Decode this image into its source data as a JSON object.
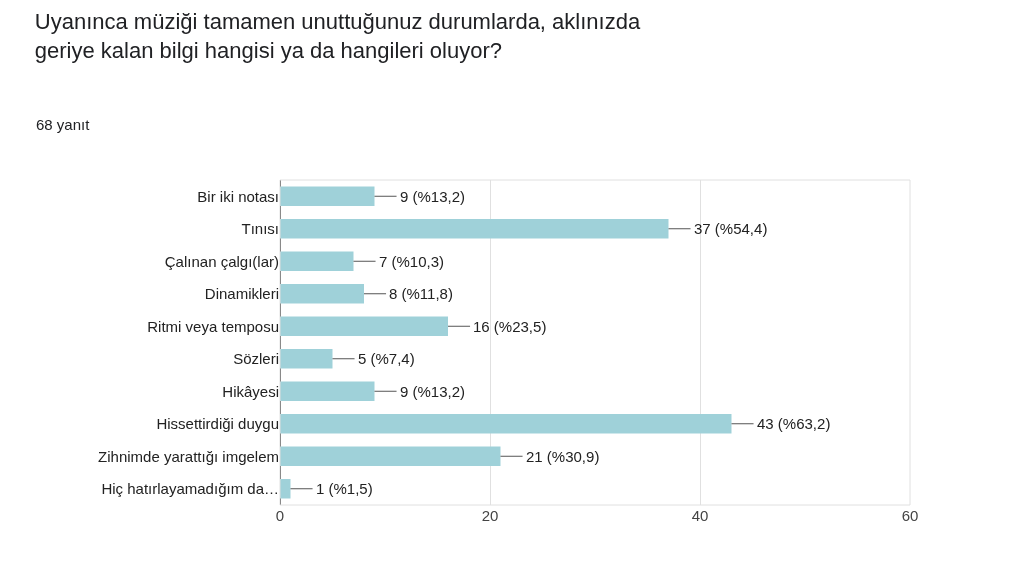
{
  "chart_data": {
    "type": "bar",
    "orientation": "horizontal",
    "title": "Uyanınca müziği tamamen unuttuğunuz durumlarda, aklınızda\ngeriye kalan bilgi hangisi ya da hangileri oluyor?",
    "subtitle": "68 yanıt",
    "categories": [
      "Bir iki notası",
      "Tınısı",
      "Çalınan çalgı(lar)",
      "Dinamikleri",
      "Ritmi veya temposu",
      "Sözleri",
      "Hikâyesi",
      "Hissettirdiği duygu",
      "Zihnimde yarattığı imgelem",
      "Hiç hatırlayamadığım da…"
    ],
    "values": [
      9,
      37,
      7,
      8,
      16,
      5,
      9,
      43,
      21,
      1
    ],
    "value_labels": [
      "9 (%13,2)",
      "37 (%54,4)",
      "7 (%10,3)",
      "8 (%11,8)",
      "16 (%23,5)",
      "5 (%7,4)",
      "9 (%13,2)",
      "43 (%63,2)",
      "21 (%30,9)",
      "1 (%1,5)"
    ],
    "color": "#9fd1d9",
    "xlim": [
      0,
      60
    ],
    "xticks": [
      0,
      20,
      40,
      60
    ],
    "grid": "x"
  }
}
